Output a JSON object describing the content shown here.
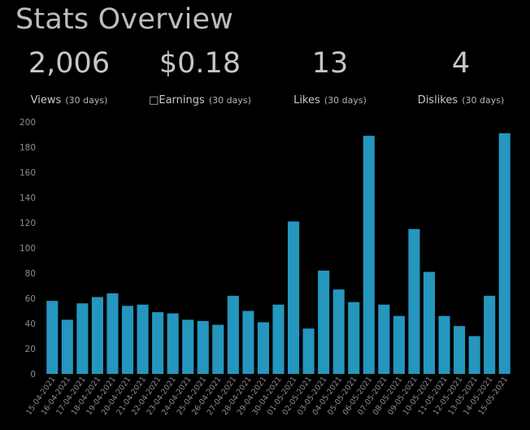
{
  "page": {
    "title": "Stats Overview"
  },
  "stats": [
    {
      "id": "views",
      "value": "2,006",
      "label": "Views",
      "period": "(30 days)"
    },
    {
      "id": "earnings",
      "value": "$0.18",
      "label": "□Earnings",
      "period": "(30 days)"
    },
    {
      "id": "likes",
      "value": "13",
      "label": "Likes",
      "period": "(30 days)"
    },
    {
      "id": "dislikes",
      "value": "4",
      "label": "Dislikes",
      "period": "(30 days)"
    }
  ],
  "colors": {
    "background": "#000000",
    "bar": "#2596be",
    "text": "#c8c8c8",
    "tick_text": "#8c8c8c"
  },
  "chart_data": {
    "type": "bar",
    "title": "",
    "xlabel": "",
    "ylabel": "",
    "ylim": [
      0,
      200
    ],
    "yticks": [
      0,
      20,
      40,
      60,
      80,
      100,
      120,
      140,
      160,
      180,
      200
    ],
    "grid": false,
    "categories": [
      "15-04-2021",
      "16-04-2021",
      "17-04-2021",
      "18-04-2021",
      "19-04-2021",
      "20-04-2021",
      "21-04-2021",
      "22-04-2021",
      "23-04-2021",
      "24-04-2021",
      "25-04-2021",
      "26-04-2021",
      "27-04-2021",
      "28-04-2021",
      "29-04-2021",
      "30-04-2021",
      "01-05-2021",
      "02-05-2021",
      "03-05-2021",
      "04-05-2021",
      "05-05-2021",
      "06-05-2021",
      "07-05-2021",
      "08-05-2021",
      "09-05-2021",
      "10-05-2021",
      "11-05-2021",
      "12-05-2021",
      "13-05-2021",
      "14-05-2021",
      "15-05-2021"
    ],
    "values": [
      58,
      43,
      56,
      61,
      64,
      54,
      55,
      49,
      48,
      43,
      42,
      39,
      62,
      50,
      41,
      55,
      121,
      36,
      82,
      67,
      57,
      189,
      55,
      46,
      115,
      81,
      46,
      38,
      30,
      62,
      191
    ]
  }
}
